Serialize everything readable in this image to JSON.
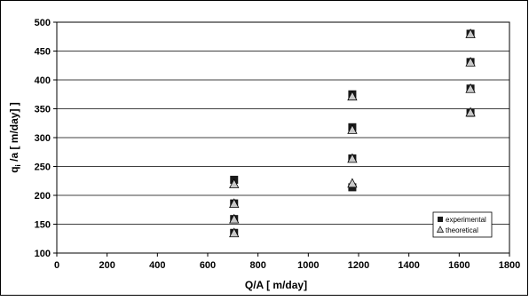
{
  "chart_data": {
    "type": "scatter",
    "xlabel": "Q/A  [ m/day]",
    "ylabel_main": "q",
    "ylabel_sub": "i",
    "ylabel_rest": " /a  [ m/day] ]",
    "xlim": [
      0,
      1800
    ],
    "ylim": [
      100,
      500
    ],
    "xticks": [
      0,
      200,
      400,
      600,
      800,
      1000,
      1200,
      1400,
      1600,
      1800
    ],
    "yticks": [
      100,
      150,
      200,
      250,
      300,
      350,
      400,
      450,
      500
    ],
    "grid": "horizontal",
    "legend_position": "bottom-right",
    "series": [
      {
        "name": "experimental",
        "marker": "square",
        "color": "#1a1a1a",
        "points": [
          {
            "x": 705,
            "y": 227
          },
          {
            "x": 705,
            "y": 186
          },
          {
            "x": 705,
            "y": 159
          },
          {
            "x": 705,
            "y": 135
          },
          {
            "x": 1175,
            "y": 375
          },
          {
            "x": 1175,
            "y": 318
          },
          {
            "x": 1175,
            "y": 264
          },
          {
            "x": 1175,
            "y": 214
          },
          {
            "x": 1645,
            "y": 480
          },
          {
            "x": 1645,
            "y": 431
          },
          {
            "x": 1645,
            "y": 385
          },
          {
            "x": 1645,
            "y": 343
          }
        ]
      },
      {
        "name": "theoretical",
        "marker": "triangle",
        "color": "#c8c8c8",
        "points": [
          {
            "x": 705,
            "y": 220
          },
          {
            "x": 705,
            "y": 186
          },
          {
            "x": 705,
            "y": 159
          },
          {
            "x": 705,
            "y": 135
          },
          {
            "x": 1175,
            "y": 372
          },
          {
            "x": 1175,
            "y": 314
          },
          {
            "x": 1175,
            "y": 264
          },
          {
            "x": 1175,
            "y": 221
          },
          {
            "x": 1645,
            "y": 480
          },
          {
            "x": 1645,
            "y": 431
          },
          {
            "x": 1645,
            "y": 385
          },
          {
            "x": 1645,
            "y": 344
          }
        ]
      }
    ]
  }
}
